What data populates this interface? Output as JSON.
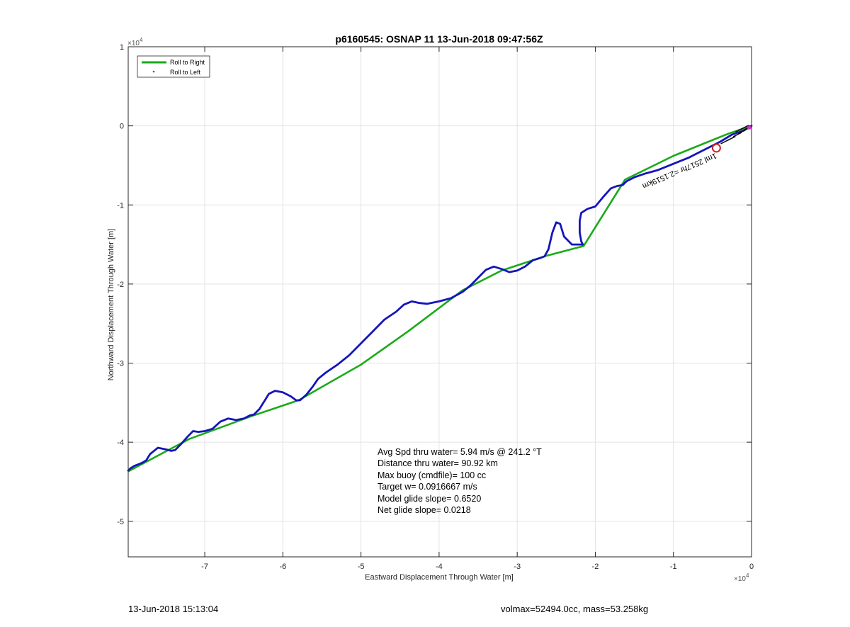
{
  "chart_data": {
    "type": "line",
    "title": "p6160545: OSNAP 11 13-Jun-2018 09:47:56Z",
    "xlabel": "Eastward Displacement Through Water [m]",
    "ylabel": "Northward Displacement Through Water [m]",
    "x_exponent_label": "×10",
    "x_exponent_power": "4",
    "y_exponent_label": "×10",
    "y_exponent_power": "4",
    "xlim": [
      -79800,
      0
    ],
    "ylim": [
      -54500,
      10000
    ],
    "xticks": [
      -70000,
      -60000,
      -50000,
      -40000,
      -30000,
      -20000,
      -10000,
      0
    ],
    "xtick_labels": [
      "-7",
      "-6",
      "-5",
      "-4",
      "-3",
      "-2",
      "-1",
      "0"
    ],
    "yticks": [
      10000,
      0,
      -10000,
      -20000,
      -30000,
      -40000,
      -50000
    ],
    "ytick_labels": [
      "1",
      "0",
      "-1",
      "-2",
      "-3",
      "-4",
      "-5"
    ],
    "grid": true,
    "legend_position": "top-left",
    "series": [
      {
        "name": "Roll to Right",
        "color": "#1aaa1a",
        "marker": "line",
        "x": [
          0,
          -3000,
          -10000,
          -16200,
          -21500,
          -26500,
          -32000,
          -37000,
          -44000,
          -50000,
          -58000,
          -64000,
          -72000,
          -79800
        ],
        "y": [
          0,
          -1000,
          -3800,
          -6800,
          -15200,
          -16500,
          -18300,
          -20800,
          -26000,
          -30200,
          -34700,
          -36700,
          -39600,
          -43700
        ]
      },
      {
        "name": "Roll to Left",
        "color": "#ee0000",
        "marker": "dot",
        "x": [],
        "y": []
      },
      {
        "name": "",
        "color": "#1515bb",
        "marker": "line",
        "x": [
          0,
          -1000,
          -2500,
          -4000,
          -6000,
          -8000,
          -10000,
          -12000,
          -13500,
          -15000,
          -16000,
          -16500,
          -17200,
          -18000,
          -19000,
          -20000,
          -21000,
          -21800,
          -22000,
          -22000,
          -21800,
          -21600,
          -23000,
          -24000,
          -24500,
          -25000,
          -25500,
          -26000,
          -26500,
          -27000,
          -28000,
          -29000,
          -30000,
          -31000,
          -32000,
          -33000,
          -34000,
          -35000,
          -36000,
          -37000,
          -38500,
          -40000,
          -41500,
          -42500,
          -43500,
          -44500,
          -45500,
          -47000,
          -48500,
          -50000,
          -51500,
          -53000,
          -54500,
          -55500,
          -56200,
          -57000,
          -57800,
          -58300,
          -59000,
          -60000,
          -61000,
          -61800,
          -62300,
          -63000,
          -63700,
          -64200,
          -65000,
          -66000,
          -67000,
          -68000,
          -69000,
          -70000,
          -70800,
          -71500,
          -72200,
          -73000,
          -73800,
          -74300,
          -75000,
          -76000,
          -77000,
          -77500,
          -78000,
          -78500,
          -79000,
          -79500,
          -79800
        ],
        "y": [
          0,
          -600,
          -1100,
          -2000,
          -3000,
          -4000,
          -4800,
          -5600,
          -6000,
          -6500,
          -7000,
          -7500,
          -7600,
          -7900,
          -9000,
          -10200,
          -10500,
          -11000,
          -12000,
          -13500,
          -14600,
          -15000,
          -15000,
          -14000,
          -12400,
          -12200,
          -13500,
          -15600,
          -16500,
          -16700,
          -17000,
          -17800,
          -18300,
          -18500,
          -18100,
          -17800,
          -18200,
          -19200,
          -20200,
          -21000,
          -21800,
          -22200,
          -22500,
          -22400,
          -22200,
          -22600,
          -23500,
          -24500,
          -26000,
          -27500,
          -29000,
          -30200,
          -31200,
          -32000,
          -33000,
          -34000,
          -34700,
          -34700,
          -34200,
          -33700,
          -33500,
          -33900,
          -34700,
          -35800,
          -36500,
          -36600,
          -37000,
          -37200,
          -37000,
          -37400,
          -38300,
          -38600,
          -38700,
          -38600,
          -39300,
          -40200,
          -41000,
          -41100,
          -40900,
          -40700,
          -41500,
          -42300,
          -42600,
          -42800,
          -43000,
          -43300,
          -43600
        ]
      }
    ],
    "annotations": {
      "rotated_label": "1ml 2517hr =2.1519km",
      "marker_circle_x": -4500,
      "marker_circle_y": -2800,
      "stats": [
        "Avg Spd thru water=  5.94 m/s @ 241.2 °T",
        "Distance thru water= 90.92 km",
        "Max buoy (cmdfile)= 100 cc",
        "Target w= 0.0916667 m/s",
        "Model glide slope= 0.6520",
        "Net glide slope= 0.0218"
      ]
    }
  },
  "footer": {
    "left": "13-Jun-2018 15:13:04",
    "right": "volmax=52494.0cc, mass=53.258kg"
  },
  "colors": {
    "grid": "#e3e3e3",
    "axes": "#262626",
    "track": "#1515bb",
    "roll_right": "#1aaa1a",
    "roll_left": "#ee0000",
    "circle": "#cc2222",
    "magenta": "#cc33cc"
  }
}
